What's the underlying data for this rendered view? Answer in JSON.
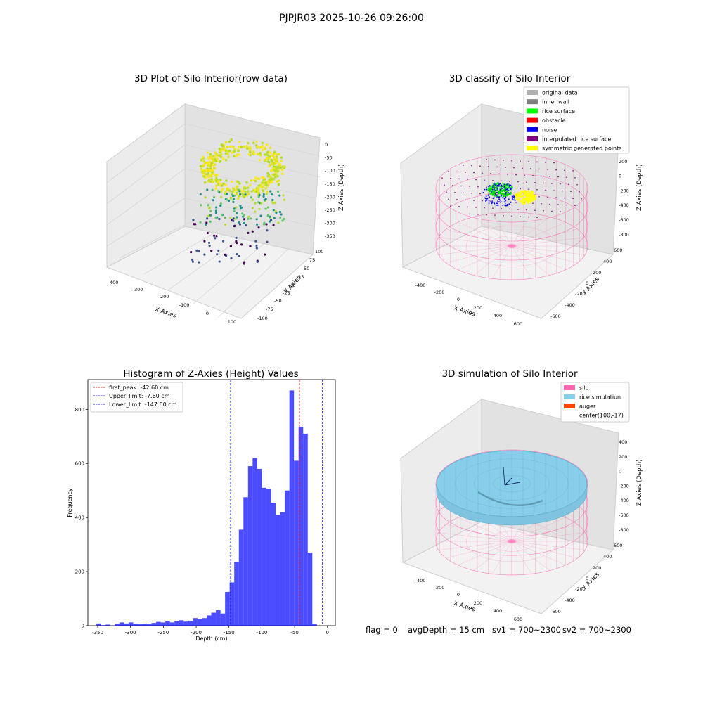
{
  "suptitle": "PJPJR03 2025-10-26 09:26:00",
  "panels": {
    "raw": {
      "title": "3D Plot of Silo Interior(row data)",
      "xlabel": "X Axies",
      "ylabel": "Y Axies",
      "zlabel": "Z Axies (Depth)",
      "xticks": [
        "-400",
        "-300",
        "-200",
        "-100",
        "0",
        "100"
      ],
      "yticks": [
        "100",
        "75",
        "50",
        "25",
        "0",
        "-25",
        "-50",
        "-75",
        "-100"
      ],
      "zticks": [
        "0",
        "-50",
        "-100",
        "-150",
        "-200",
        "-250",
        "-300",
        "-350"
      ]
    },
    "classify": {
      "title": "3D classify of Silo Interior",
      "xlabel": "X Axies",
      "ylabel": "Y Axies",
      "zlabel": "Z Axies (Depth)",
      "xticks": [
        "-400",
        "-200",
        "0",
        "200",
        "400",
        "600"
      ],
      "yticks": [
        "600",
        "400",
        "200",
        "0",
        "-200",
        "-400",
        "-600"
      ],
      "zticks": [
        "400",
        "200",
        "0",
        "-200",
        "-400",
        "-600",
        "-800"
      ],
      "legend": [
        {
          "label": "original data",
          "color": "#b0b0b0"
        },
        {
          "label": "inner wall",
          "color": "#808080"
        },
        {
          "label": "rice surface",
          "color": "#00ff00"
        },
        {
          "label": "obstacle",
          "color": "#ff0000"
        },
        {
          "label": "noise",
          "color": "#0000ff"
        },
        {
          "label": "interpolated rice surface",
          "color": "#800080"
        },
        {
          "label": "symmetric generated points",
          "color": "#ffff00"
        }
      ]
    },
    "simulation": {
      "title": "3D simulation of Silo Interior",
      "xlabel": "X Axies",
      "ylabel": "Y Axies",
      "zlabel": "Z Axies (Depth)",
      "xticks": [
        "-400",
        "-200",
        "0",
        "200",
        "400",
        "600"
      ],
      "yticks": [
        "600",
        "400",
        "200",
        "0",
        "-200",
        "-400",
        "-600"
      ],
      "zticks": [
        "400",
        "200",
        "0",
        "-200",
        "-400",
        "-600",
        "-800"
      ],
      "legend": [
        {
          "label": "silo",
          "color": "#ff69b4"
        },
        {
          "label": "rice simulation",
          "color": "#87ceeb"
        },
        {
          "label": "auger",
          "color": "#ff4500"
        },
        {
          "label": "center(100,-17)",
          "color": ""
        }
      ]
    }
  },
  "status": {
    "flag": "flag = 0",
    "avg": "avgDepth = 15 cm",
    "sv1": "sv1 = 700~2300",
    "sv2": "sv2 = 700~2300"
  },
  "chart_data": [
    {
      "type": "bar",
      "title": "Histogram of Z-Axies (Height) Values",
      "xlabel": "Depth (cm)",
      "ylabel": "Frequency",
      "xlim": [
        -365,
        12
      ],
      "ylim": [
        0,
        910
      ],
      "xticks": [
        -350,
        -300,
        -250,
        -200,
        -150,
        -100,
        -50,
        0
      ],
      "yticks": [
        0,
        200,
        400,
        600,
        800
      ],
      "bin_width": 7,
      "bins_start": [
        -352,
        -345,
        -338,
        -331,
        -324,
        -317,
        -310,
        -303,
        -296,
        -289,
        -282,
        -275,
        -268,
        -261,
        -254,
        -247,
        -240,
        -233,
        -226,
        -219,
        -212,
        -205,
        -198,
        -191,
        -184,
        -177,
        -170,
        -163,
        -156,
        -149,
        -142,
        -135,
        -128,
        -121,
        -114,
        -107,
        -100,
        -93,
        -86,
        -79,
        -72,
        -65,
        -58,
        -51,
        -44,
        -37,
        -30,
        -23,
        -16,
        -9
      ],
      "values": [
        8,
        2,
        4,
        0,
        6,
        12,
        8,
        12,
        6,
        5,
        7,
        5,
        10,
        14,
        12,
        17,
        12,
        16,
        20,
        15,
        18,
        28,
        25,
        28,
        38,
        48,
        58,
        45,
        125,
        160,
        235,
        355,
        475,
        590,
        620,
        580,
        510,
        505,
        455,
        410,
        420,
        500,
        870,
        610,
        735,
        710,
        270,
        5,
        0,
        0
      ],
      "bar_color": "#0000ff",
      "vlines": [
        {
          "label": "first_peak: -42.60 cm",
          "x": -42.6,
          "color": "#ff0000"
        },
        {
          "label": "Upper_limit: -7.60 cm",
          "x": -7.6,
          "color": "#0000ff"
        },
        {
          "label": "Lower_limit: -147.60 cm",
          "x": -147.6,
          "color": "#0000ff"
        }
      ],
      "legend_position": "upper left"
    }
  ]
}
